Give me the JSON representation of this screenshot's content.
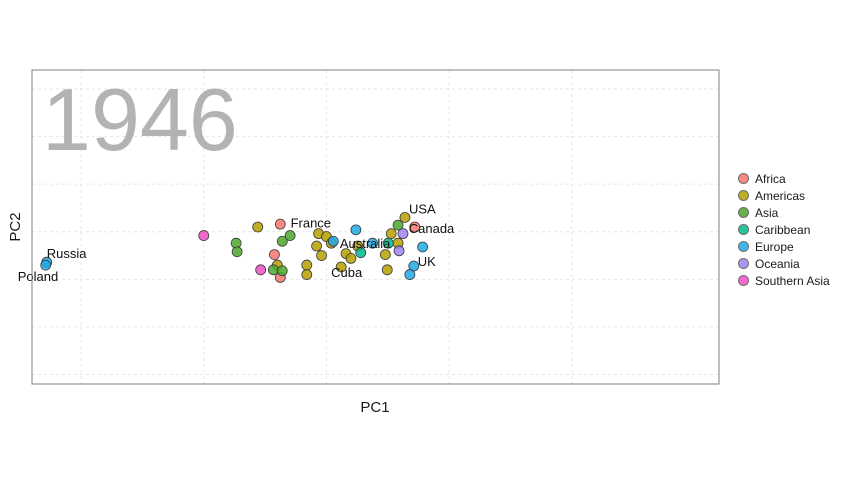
{
  "chart_data": {
    "type": "scatter",
    "title": "",
    "year_label": "1946",
    "xlabel": "PC1",
    "ylabel": "PC2",
    "xlim": [
      -1.0,
      6.0
    ],
    "ylim": [
      -1.1,
      2.2
    ],
    "grid": true,
    "legend_position": "right",
    "groups": [
      {
        "name": "Africa",
        "color": "#F8766D"
      },
      {
        "name": "Americas",
        "color": "#B79F00"
      },
      {
        "name": "Asia",
        "color": "#4CA72A"
      },
      {
        "name": "Caribbean",
        "color": "#00BA8C"
      },
      {
        "name": "Europe",
        "color": "#1FA9E8"
      },
      {
        "name": "Oceania",
        "color": "#9F82F0"
      },
      {
        "name": "Southern Asia",
        "color": "#F04FC6"
      }
    ],
    "points": [
      {
        "x": -0.85,
        "y": 0.18,
        "group": "Europe",
        "label": "Russia"
      },
      {
        "x": -0.86,
        "y": 0.15,
        "group": "Europe",
        "label": "Poland"
      },
      {
        "x": 2.8,
        "y": 0.65,
        "group": "Americas",
        "label": "USA"
      },
      {
        "x": 2.9,
        "y": 0.55,
        "group": "Africa",
        "label": "Canada"
      },
      {
        "x": 1.92,
        "y": 0.48,
        "group": "Americas",
        "label": "France"
      },
      {
        "x": 2.32,
        "y": 0.35,
        "group": "Americas",
        "label": "Australia"
      },
      {
        "x": 2.15,
        "y": 0.13,
        "group": "Americas",
        "label": "Cuba"
      },
      {
        "x": 2.89,
        "y": 0.14,
        "group": "Europe",
        "label": "UK"
      },
      {
        "x": 1.3,
        "y": 0.55,
        "group": "Americas"
      },
      {
        "x": 2.0,
        "y": 0.45,
        "group": "Americas"
      },
      {
        "x": 1.95,
        "y": 0.25,
        "group": "Americas"
      },
      {
        "x": 1.8,
        "y": 0.15,
        "group": "Americas"
      },
      {
        "x": 1.8,
        "y": 0.05,
        "group": "Americas"
      },
      {
        "x": 1.9,
        "y": 0.35,
        "group": "Americas"
      },
      {
        "x": 2.05,
        "y": 0.38,
        "group": "Americas"
      },
      {
        "x": 2.2,
        "y": 0.27,
        "group": "Americas"
      },
      {
        "x": 2.25,
        "y": 0.22,
        "group": "Americas"
      },
      {
        "x": 2.6,
        "y": 0.26,
        "group": "Americas"
      },
      {
        "x": 2.73,
        "y": 0.38,
        "group": "Americas"
      },
      {
        "x": 2.66,
        "y": 0.48,
        "group": "Americas"
      },
      {
        "x": 2.62,
        "y": 0.1,
        "group": "Americas"
      },
      {
        "x": 1.5,
        "y": 0.15,
        "group": "Americas"
      },
      {
        "x": 1.53,
        "y": 0.58,
        "group": "Africa"
      },
      {
        "x": 1.47,
        "y": 0.26,
        "group": "Africa"
      },
      {
        "x": 1.53,
        "y": 0.02,
        "group": "Africa"
      },
      {
        "x": 1.08,
        "y": 0.38,
        "group": "Asia"
      },
      {
        "x": 1.09,
        "y": 0.29,
        "group": "Asia"
      },
      {
        "x": 1.55,
        "y": 0.4,
        "group": "Asia"
      },
      {
        "x": 1.63,
        "y": 0.46,
        "group": "Asia"
      },
      {
        "x": 1.46,
        "y": 0.1,
        "group": "Asia"
      },
      {
        "x": 1.55,
        "y": 0.09,
        "group": "Asia"
      },
      {
        "x": 2.73,
        "y": 0.57,
        "group": "Asia"
      },
      {
        "x": 2.63,
        "y": 0.38,
        "group": "Caribbean"
      },
      {
        "x": 2.35,
        "y": 0.28,
        "group": "Caribbean"
      },
      {
        "x": 2.07,
        "y": 0.4,
        "group": "Europe"
      },
      {
        "x": 2.3,
        "y": 0.52,
        "group": "Europe"
      },
      {
        "x": 2.47,
        "y": 0.38,
        "group": "Europe"
      },
      {
        "x": 2.98,
        "y": 0.34,
        "group": "Europe"
      },
      {
        "x": 2.85,
        "y": 0.05,
        "group": "Europe"
      },
      {
        "x": 2.78,
        "y": 0.48,
        "group": "Oceania"
      },
      {
        "x": 2.74,
        "y": 0.3,
        "group": "Oceania"
      },
      {
        "x": 0.75,
        "y": 0.46,
        "group": "Southern Asia"
      },
      {
        "x": 1.33,
        "y": 0.1,
        "group": "Southern Asia"
      }
    ]
  }
}
